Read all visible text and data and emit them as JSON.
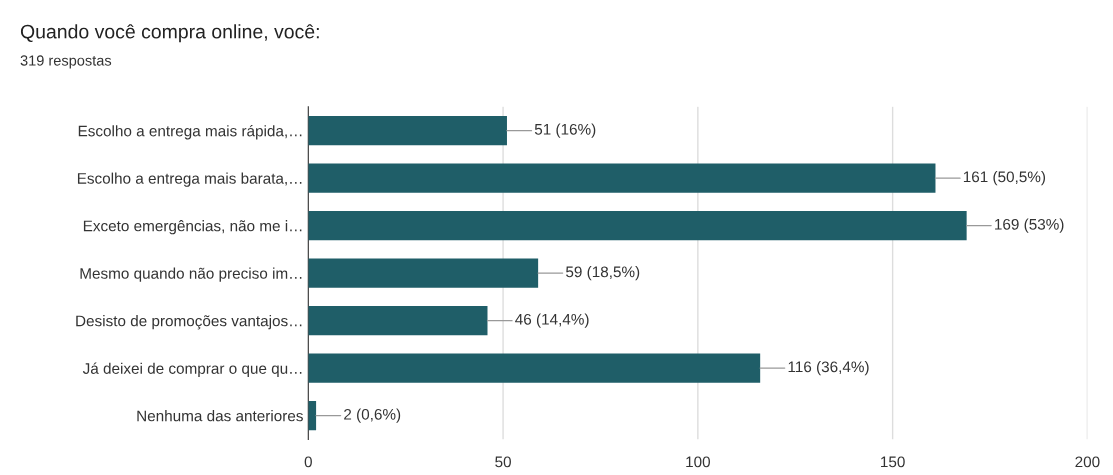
{
  "chart_data": {
    "type": "bar",
    "orientation": "horizontal",
    "title": "Quando você compra online, você:",
    "subtitle": "319 respostas",
    "categories": [
      "Escolho a entrega mais rápida,…",
      "Escolho a entrega mais barata,…",
      "Exceto emergências, não me i…",
      "Mesmo quando não preciso im…",
      "Desisto de promoções vantajos…",
      "Já deixei de comprar o que qu…",
      "Nenhuma das anteriores"
    ],
    "values": [
      51,
      161,
      169,
      59,
      46,
      116,
      2
    ],
    "value_labels": [
      "51 (16%)",
      "161 (50,5%)",
      "169 (53%)",
      "59 (18,5%)",
      "46 (14,4%)",
      "116 (36,4%)",
      "2 (0,6%)"
    ],
    "color": "#1f5e68",
    "xlim": [
      0,
      200
    ],
    "xticks": [
      0,
      50,
      100,
      150,
      200
    ],
    "grid": "x"
  }
}
